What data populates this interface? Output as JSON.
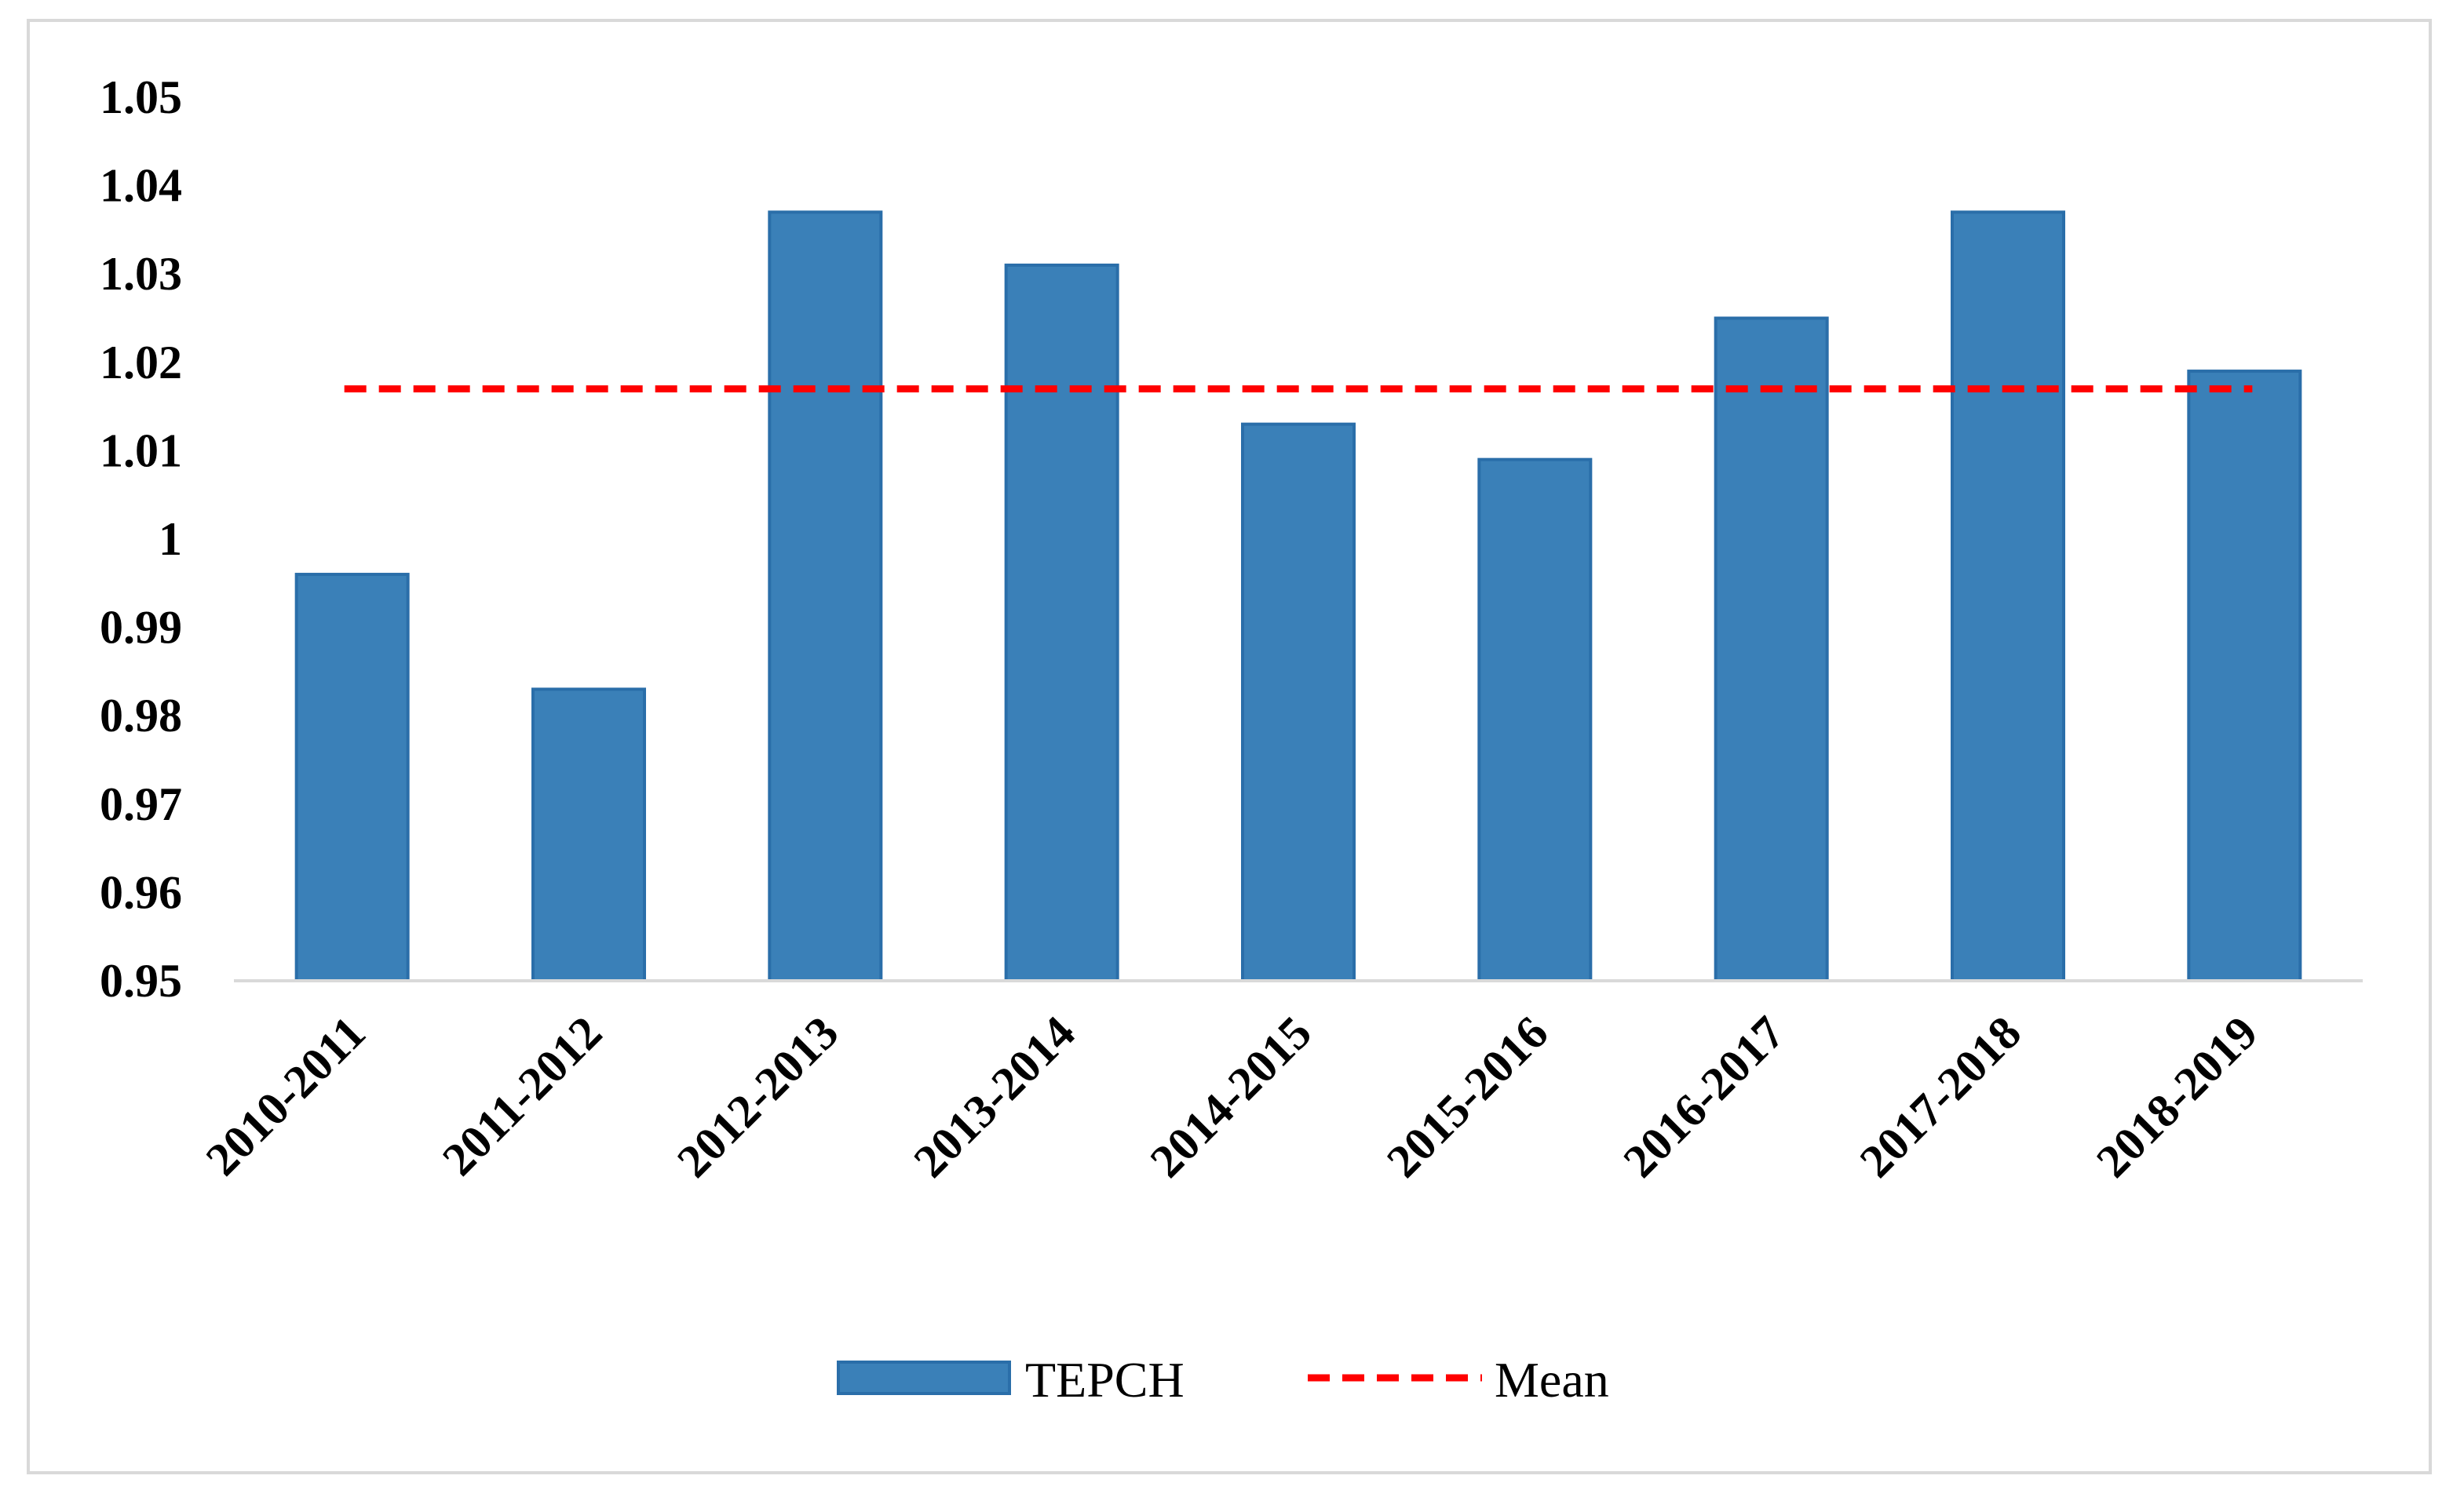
{
  "chart_data": {
    "type": "bar",
    "categories": [
      "2010-2011",
      "2011-2012",
      "2012-2013",
      "2013-2014",
      "2014-2015",
      "2015-2016",
      "2016-2017",
      "2017-2018",
      "2018-2019"
    ],
    "series": [
      {
        "name": "TEPCH",
        "type": "bar",
        "values": [
          0.996,
          0.983,
          1.037,
          1.031,
          1.013,
          1.009,
          1.025,
          1.037,
          1.019
        ],
        "color": "#3a80b8",
        "edge_color": "#2a6ea9"
      },
      {
        "name": "Mean",
        "type": "line",
        "style": "dashed",
        "values": [
          1.017,
          1.017,
          1.017,
          1.017,
          1.017,
          1.017,
          1.017,
          1.017,
          1.017
        ],
        "color": "#ff0000"
      }
    ],
    "y_ticks": [
      "0.95",
      "0.96",
      "0.97",
      "0.98",
      "0.99",
      "1",
      "1.01",
      "1.02",
      "1.03",
      "1.04",
      "1.05"
    ],
    "ylim": [
      0.95,
      1.05
    ],
    "grid": false,
    "legend_position": "bottom",
    "title": "",
    "xlabel": "",
    "ylabel": ""
  }
}
